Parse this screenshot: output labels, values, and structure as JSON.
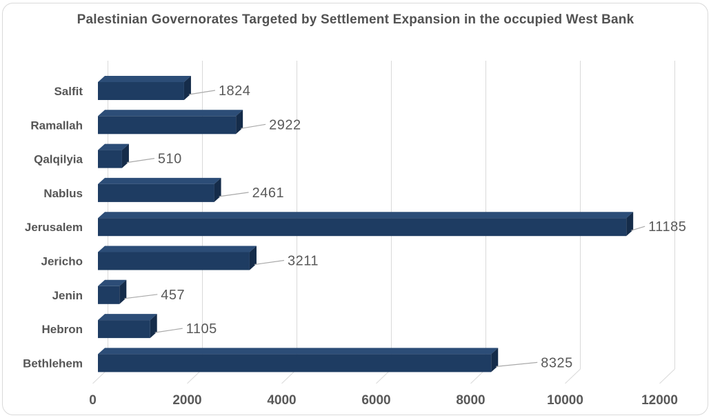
{
  "window": {
    "background": "#ffffff",
    "card_border_color": "#d9d9d9"
  },
  "chart_data": {
    "type": "bar",
    "orientation": "horizontal",
    "style": "3d-beveled-bars",
    "title": "Palestinian Governorates Targeted by Settlement Expansion in the occupied West Bank",
    "categories": [
      "Salfit",
      "Ramallah",
      "Qalqilyia",
      "Nablus",
      "Jerusalem",
      "Jericho",
      "Jenin",
      "Hebron",
      "Bethlehem"
    ],
    "values": [
      1824,
      2922,
      510,
      2461,
      11185,
      3211,
      457,
      1105,
      8325
    ],
    "data_labels": [
      "1824",
      "2922",
      "510",
      "2461",
      "11185",
      "3211",
      "457",
      "1105",
      "8325"
    ],
    "x_ticks": [
      0,
      2000,
      4000,
      6000,
      8000,
      10000,
      12000
    ],
    "x_tick_labels": [
      "0",
      "2000",
      "4000",
      "6000",
      "8000",
      "10000",
      "12000"
    ],
    "xlim": [
      0,
      12000
    ],
    "xlabel": "",
    "ylabel": "",
    "legend": "none",
    "grid": "vertical-major-every-2000",
    "colors": {
      "bar_front": "#1e3c62",
      "bar_top": "#2c4d77",
      "bar_side": "#152c4a",
      "gridline": "#d9d9d9",
      "leader_line": "#a8a8a8",
      "title_text": "#525252",
      "category_text": "#565656",
      "tick_text": "#595959",
      "data_label_text": "#595959"
    }
  }
}
